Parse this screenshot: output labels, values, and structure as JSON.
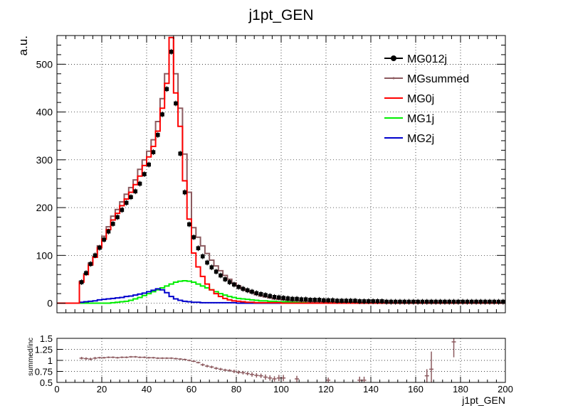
{
  "chart_data": [
    {
      "type": "line",
      "title": "j1pt_GEN",
      "xlabel": "",
      "ylabel": "a.u.",
      "xlim": [
        0,
        200
      ],
      "ylim": [
        -20,
        560
      ],
      "grid": true,
      "legend_position": "top-right",
      "x_ticks": [
        "0",
        "20",
        "40",
        "60",
        "80",
        "100",
        "120",
        "140",
        "160",
        "180",
        "200"
      ],
      "y_ticks": [
        "0",
        "100",
        "200",
        "300",
        "400",
        "500"
      ],
      "x_tick_values": [
        0,
        20,
        40,
        60,
        80,
        100,
        120,
        140,
        160,
        180,
        200
      ],
      "y_tick_values": [
        0,
        100,
        200,
        300,
        400,
        500
      ],
      "bin_edges_start": 0,
      "bin_width": 2,
      "series": [
        {
          "name": "MG012j",
          "style": "markers",
          "color": "#000000",
          "x": [
            11,
            13,
            15,
            17,
            19,
            21,
            23,
            25,
            27,
            29,
            31,
            33,
            35,
            37,
            39,
            41,
            43,
            45,
            47,
            49,
            51,
            53,
            55,
            57,
            59,
            61,
            63,
            65,
            67,
            69,
            71,
            73,
            75,
            77,
            79,
            81,
            83,
            85,
            87,
            89,
            91,
            93,
            95,
            97,
            99,
            101,
            103,
            105,
            107,
            109,
            111,
            113,
            115,
            117,
            119,
            121,
            123,
            125,
            127,
            129,
            131,
            133,
            135,
            137,
            139,
            141,
            143,
            145,
            147,
            149,
            151,
            153,
            155,
            157,
            159,
            161,
            163,
            165,
            167,
            169,
            171,
            173,
            175,
            177,
            179,
            181,
            183,
            185,
            187,
            189,
            191,
            193,
            195,
            197,
            199
          ],
          "values": [
            44,
            63,
            82,
            100,
            116,
            133,
            150,
            166,
            180,
            195,
            210,
            222,
            234,
            250,
            270,
            290,
            316,
            352,
            395,
            448,
            526,
            418,
            313,
            232,
            165,
            138,
            115,
            98,
            85,
            75,
            66,
            58,
            50,
            44,
            39,
            34,
            30,
            27,
            24,
            21,
            19,
            17,
            15,
            13,
            12,
            11,
            10,
            9,
            9,
            8,
            8,
            7,
            7,
            7,
            6,
            6,
            6,
            5,
            5,
            5,
            5,
            5,
            4,
            4,
            4,
            4,
            4,
            4,
            3,
            3,
            3,
            3,
            3,
            3,
            3,
            3,
            3,
            3,
            3,
            3,
            3,
            3,
            3,
            3,
            3,
            3,
            3,
            3,
            3,
            3,
            3,
            3,
            3,
            3,
            3
          ]
        },
        {
          "name": "MGsummed",
          "style": "hist",
          "color": "#8c5a5f",
          "values": [
            0,
            0,
            0,
            0,
            0,
            46,
            62,
            84,
            98,
            120,
            140,
            160,
            182,
            196,
            212,
            228,
            242,
            258,
            280,
            300,
            318,
            342,
            380,
            428,
            480,
            556,
            480,
            408,
            312,
            232,
            158,
            138,
            120,
            104,
            90,
            78,
            68,
            58,
            50,
            42,
            36,
            30,
            26,
            22,
            18,
            15,
            13,
            11,
            9,
            8,
            7,
            6,
            5,
            5,
            4,
            4,
            3,
            3,
            3,
            3,
            2,
            2,
            2,
            2,
            2,
            2,
            2,
            2,
            2,
            2,
            2,
            2,
            2,
            2,
            2,
            2,
            2,
            2,
            2,
            2,
            2,
            2,
            2,
            2,
            2,
            2,
            2,
            2,
            2,
            2,
            2,
            2,
            2,
            2,
            2,
            2,
            2,
            2,
            2,
            2
          ]
        },
        {
          "name": "MG0j",
          "style": "hist",
          "color": "#ff0000",
          "values": [
            0,
            0,
            0,
            0,
            0,
            44,
            60,
            80,
            96,
            116,
            134,
            154,
            174,
            188,
            204,
            218,
            232,
            248,
            266,
            288,
            306,
            328,
            360,
            408,
            460,
            556,
            440,
            370,
            256,
            176,
            105,
            76,
            56,
            40,
            28,
            20,
            14,
            10,
            7,
            5,
            4,
            3,
            2,
            2,
            1,
            1,
            1,
            1,
            1,
            1,
            0,
            0,
            0,
            0,
            0,
            0,
            0,
            0,
            0,
            0,
            0,
            0,
            0,
            0,
            0,
            0,
            0,
            0,
            0,
            0,
            0,
            0,
            0,
            0,
            0,
            0,
            0,
            0,
            0,
            0,
            0,
            0,
            0,
            0,
            0,
            0,
            0,
            0,
            0,
            0,
            0,
            0,
            0,
            0,
            0,
            0,
            0,
            0,
            0,
            0
          ]
        },
        {
          "name": "MG1j",
          "style": "hist",
          "color": "#00ee00",
          "values": [
            0,
            0,
            0,
            0,
            0,
            0,
            0,
            0,
            0,
            0,
            0,
            0,
            1,
            2,
            3,
            4,
            6,
            9,
            12,
            16,
            20,
            24,
            28,
            32,
            36,
            40,
            44,
            46,
            47,
            46,
            44,
            40,
            36,
            32,
            28,
            24,
            20,
            17,
            14,
            12,
            10,
            9,
            8,
            7,
            6,
            5,
            5,
            4,
            4,
            3,
            3,
            3,
            3,
            2,
            2,
            2,
            2,
            2,
            2,
            2,
            2,
            2,
            2,
            2,
            2,
            2,
            2,
            1,
            1,
            1,
            1,
            1,
            1,
            1,
            1,
            1,
            1,
            1,
            1,
            1,
            1,
            1,
            1,
            1,
            1,
            1,
            1,
            1,
            1,
            1,
            1,
            1,
            1,
            1,
            1,
            1,
            1,
            1,
            1,
            1
          ]
        },
        {
          "name": "MG2j",
          "style": "hist",
          "color": "#0000cc",
          "values": [
            0,
            0,
            0,
            0,
            0,
            2,
            3,
            4,
            5,
            7,
            8,
            9,
            10,
            11,
            12,
            14,
            15,
            17,
            19,
            21,
            24,
            27,
            30,
            28,
            22,
            14,
            9,
            6,
            4,
            3,
            2,
            2,
            1,
            1,
            1,
            1,
            1,
            1,
            1,
            1,
            0,
            0,
            0,
            0,
            0,
            0,
            0,
            0,
            0,
            0,
            0,
            0,
            0,
            0,
            0,
            0,
            0,
            0,
            0,
            0,
            0,
            0,
            0,
            0,
            0,
            0,
            0,
            0,
            0,
            0,
            0,
            0,
            0,
            0,
            0,
            0,
            0,
            0,
            0,
            0,
            0,
            0,
            0,
            0,
            0,
            0,
            0,
            0,
            0,
            0,
            0,
            0,
            0,
            0,
            0,
            0,
            0,
            0,
            0,
            0
          ]
        }
      ]
    },
    {
      "type": "scatter",
      "title": "",
      "xlabel": "j1pt_GEN",
      "ylabel": "summed/inc",
      "xlim": [
        0,
        200
      ],
      "ylim": [
        0.5,
        1.5
      ],
      "grid": true,
      "x_ticks": [
        "0",
        "20",
        "40",
        "60",
        "80",
        "100",
        "120",
        "140",
        "160",
        "180",
        "200"
      ],
      "y_ticks": [
        "0.5",
        "0.75",
        "1",
        "1.25",
        "1.5"
      ],
      "x_tick_values": [
        0,
        20,
        40,
        60,
        80,
        100,
        120,
        140,
        160,
        180,
        200
      ],
      "y_tick_values": [
        0.5,
        0.75,
        1,
        1.25,
        1.5
      ],
      "series": [
        {
          "name": "",
          "color": "#8c5a5f",
          "x": [
            11,
            13,
            15,
            17,
            19,
            21,
            23,
            25,
            27,
            29,
            31,
            33,
            35,
            37,
            39,
            41,
            43,
            45,
            47,
            49,
            51,
            53,
            55,
            57,
            59,
            61,
            63,
            65,
            67,
            69,
            71,
            73,
            75,
            77,
            79,
            81,
            83,
            85,
            87,
            89,
            91,
            93,
            95,
            97,
            99,
            101,
            107,
            121,
            135,
            137,
            165,
            167,
            177
          ],
          "values": [
            1.05,
            1.04,
            1.03,
            1.05,
            1.06,
            1.06,
            1.07,
            1.07,
            1.06,
            1.07,
            1.07,
            1.08,
            1.08,
            1.07,
            1.07,
            1.06,
            1.06,
            1.05,
            1.05,
            1.05,
            1.05,
            1.04,
            1.03,
            1.02,
            1.0,
            0.98,
            0.95,
            0.9,
            0.87,
            0.85,
            0.82,
            0.8,
            0.78,
            0.77,
            0.75,
            0.73,
            0.72,
            0.7,
            0.68,
            0.66,
            0.65,
            0.62,
            0.6,
            0.58,
            0.6,
            0.6,
            0.58,
            0.55,
            0.55,
            0.55,
            0.65,
            0.8,
            1.42
          ],
          "errors": [
            0.03,
            0.03,
            0.03,
            0.03,
            0.02,
            0.02,
            0.02,
            0.02,
            0.02,
            0.02,
            0.02,
            0.02,
            0.02,
            0.02,
            0.02,
            0.02,
            0.02,
            0.02,
            0.02,
            0.02,
            0.02,
            0.02,
            0.02,
            0.02,
            0.02,
            0.02,
            0.02,
            0.03,
            0.03,
            0.03,
            0.03,
            0.03,
            0.03,
            0.03,
            0.04,
            0.04,
            0.04,
            0.04,
            0.05,
            0.05,
            0.05,
            0.06,
            0.06,
            0.06,
            0.07,
            0.07,
            0.07,
            0.06,
            0.08,
            0.08,
            0.15,
            0.4,
            0.35
          ]
        }
      ]
    }
  ]
}
